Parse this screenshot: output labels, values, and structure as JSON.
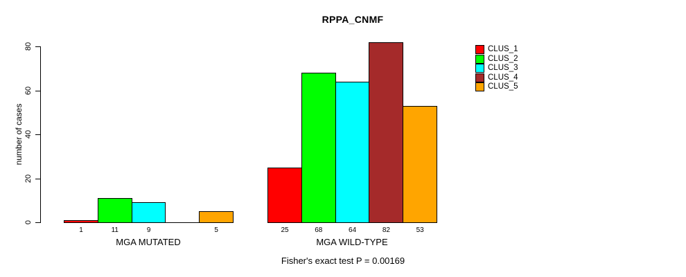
{
  "chart_data": {
    "type": "bar",
    "title": "RPPA_CNMF",
    "xlabel": "",
    "ylabel": "number of cases",
    "ylim": [
      0,
      80
    ],
    "yticks": [
      0,
      20,
      40,
      60,
      80
    ],
    "grid": false,
    "legend_position": "right",
    "categories": [
      "MGA MUTATED",
      "MGA WILD-TYPE"
    ],
    "series": [
      {
        "name": "CLUS_1",
        "color": "#ff0000",
        "values": [
          1,
          25
        ]
      },
      {
        "name": "CLUS_2",
        "color": "#00ff00",
        "values": [
          11,
          68
        ]
      },
      {
        "name": "CLUS_3",
        "color": "#00ffff",
        "values": [
          9,
          64
        ]
      },
      {
        "name": "CLUS_4",
        "color": "#a52a2a",
        "values": [
          0,
          82
        ]
      },
      {
        "name": "CLUS_5",
        "color": "#ffa500",
        "values": [
          5,
          53
        ]
      }
    ],
    "bar_value_labels": [
      [
        "1",
        "11",
        "9",
        "",
        "5"
      ],
      [
        "25",
        "68",
        "64",
        "82",
        "53"
      ]
    ],
    "footnote": "Fisher's exact test P = 0.00169"
  },
  "colors": {
    "background": "#ffffff",
    "text": "#000000",
    "axis": "#000000",
    "bar_border": "#000000"
  }
}
